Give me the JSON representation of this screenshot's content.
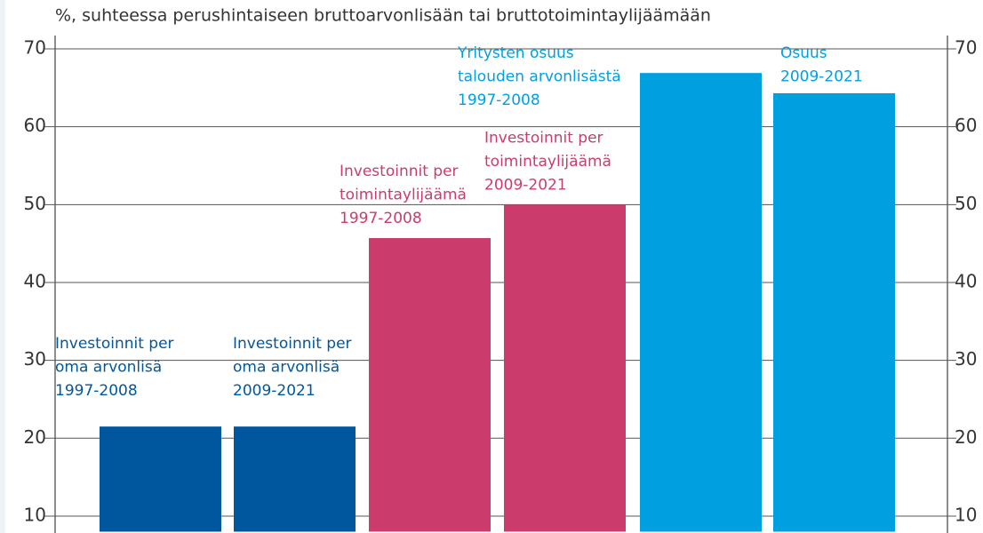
{
  "chart_data": {
    "type": "bar",
    "title": "%, suhteessa perushintaiseen bruttoarvonlisään tai bruttotoimintaylijäämään",
    "categories": [
      [
        "Investoinnit per",
        "oma arvonlisä",
        "1997-2008"
      ],
      [
        "Investoinnit per",
        "oma arvonlisä",
        "2009-2021"
      ],
      [
        "Investoinnit per",
        "toimintaylijäämä",
        "1997-2008"
      ],
      [
        "Investoinnit per",
        "toimintaylijäämä",
        "2009-2021"
      ],
      [
        "Yritysten osuus",
        "talouden arvonlisästä",
        "1997-2008"
      ],
      [
        "Osuus",
        "2009-2021"
      ]
    ],
    "values": [
      21.5,
      21.5,
      45.7,
      50,
      66.9,
      64.3
    ],
    "colors": [
      "#00579e",
      "#00579e",
      "#cb3c6d",
      "#cb3c6d",
      "#009fe0",
      "#009fe0"
    ],
    "ylim": [
      8,
      73
    ],
    "yticks": [
      10,
      20,
      30,
      40,
      50,
      60,
      70
    ],
    "grid": true
  }
}
